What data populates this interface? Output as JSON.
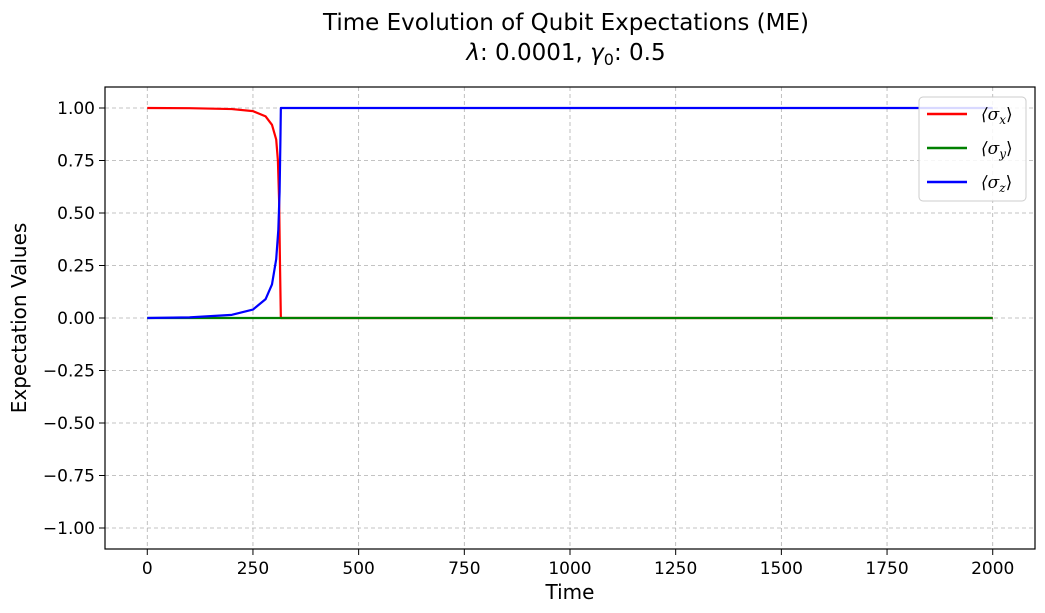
{
  "chart_data": {
    "type": "line",
    "title": "Time Evolution of Qubit Expectations (ME)",
    "subtitle": {
      "lambda_symbol": "λ",
      "lambda_text": ": 0.0001, ",
      "gamma_symbol": "γ",
      "gamma_sub": "0",
      "gamma_text": ": 0.5"
    },
    "xlabel": "Time",
    "ylabel": "Expectation Values",
    "xlim": [
      -100,
      2100
    ],
    "ylim": [
      -1.1,
      1.1
    ],
    "x_ticks": [
      0,
      250,
      500,
      750,
      1000,
      1250,
      1500,
      1750,
      2000
    ],
    "x_tick_labels": [
      "0",
      "250",
      "500",
      "750",
      "1000",
      "1250",
      "1500",
      "1750",
      "2000"
    ],
    "y_ticks": [
      1.0,
      0.75,
      0.5,
      0.25,
      0.0,
      -0.25,
      -0.5,
      -0.75,
      -1.0
    ],
    "y_tick_labels": [
      "1.00",
      "0.75",
      "0.50",
      "0.25",
      "0.00",
      "−0.25",
      "−0.50",
      "−0.75",
      "−1.00"
    ],
    "grid": true,
    "legend_position": "top-right",
    "series": [
      {
        "name": "⟨σx⟩",
        "sym": "⟨σ",
        "sub": "x",
        "close": "⟩",
        "color": "#ff0000",
        "x": [
          0,
          100,
          200,
          250,
          280,
          295,
          305,
          309,
          312,
          314,
          316,
          320,
          400,
          1000,
          2000
        ],
        "y": [
          1.0,
          0.999,
          0.995,
          0.985,
          0.96,
          0.92,
          0.85,
          0.75,
          0.55,
          0.25,
          0.0,
          0.0,
          0.0,
          0.0,
          0.0
        ]
      },
      {
        "name": "⟨σy⟩",
        "sym": "⟨σ",
        "sub": "y",
        "close": "⟩",
        "color": "#008000",
        "x": [
          0,
          2000
        ],
        "y": [
          0.0,
          0.0
        ]
      },
      {
        "name": "⟨σz⟩",
        "sym": "⟨σ",
        "sub": "z",
        "close": "⟩",
        "color": "#0000ff",
        "x": [
          0,
          100,
          200,
          250,
          280,
          295,
          305,
          310,
          313,
          315,
          316,
          320,
          500,
          1500,
          2000
        ],
        "y": [
          0.0,
          0.003,
          0.015,
          0.04,
          0.09,
          0.16,
          0.28,
          0.42,
          0.6,
          0.85,
          1.0,
          1.0,
          1.0,
          1.0,
          1.0
        ]
      }
    ]
  }
}
